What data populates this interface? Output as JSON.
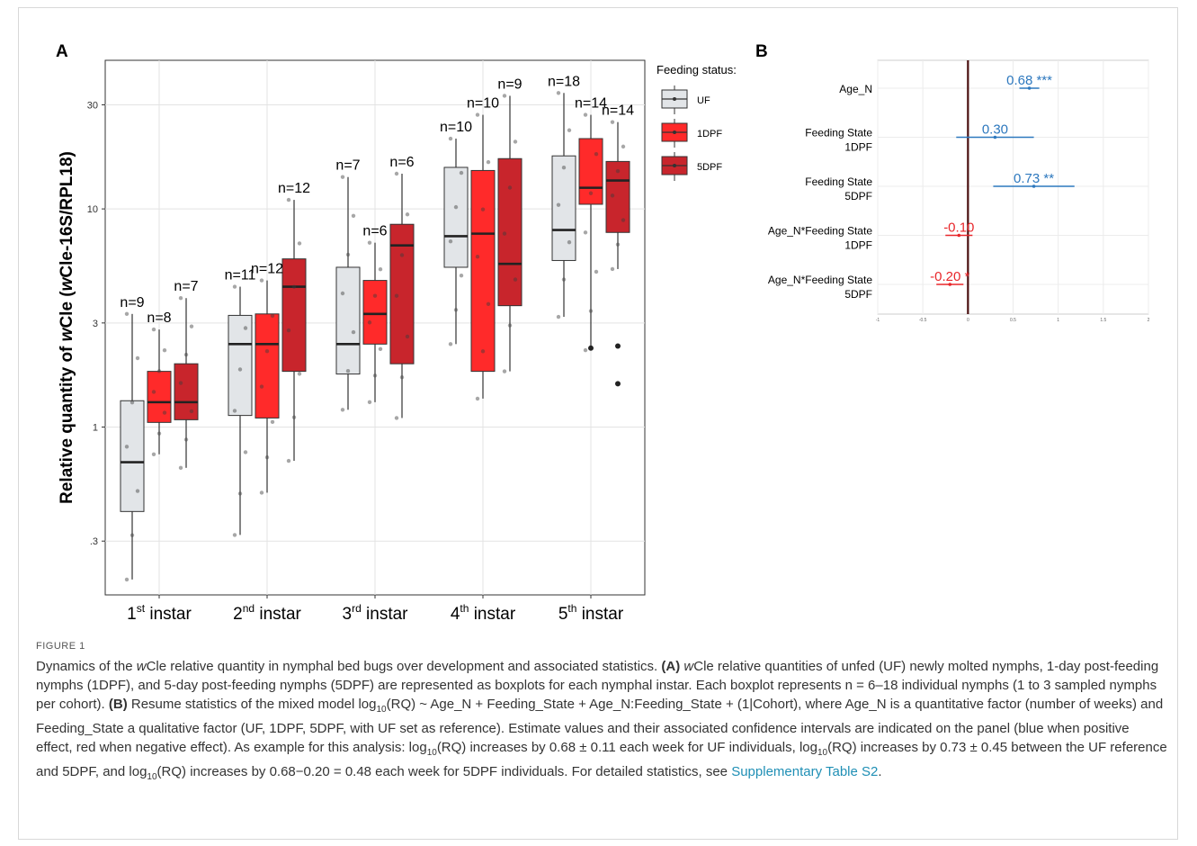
{
  "panel_labels": {
    "a": "A",
    "b": "B"
  },
  "panelA": {
    "ylabel_prefix": "Relative quantity of ",
    "ylabel_italic": "w",
    "ylabel_mid": "Cle (",
    "ylabel_italic2": "w",
    "ylabel_suffix": "Cle-16S/RPL18)",
    "legend_title": "Feeding status:",
    "colors": {
      "UF": "#e2e5e8",
      "1DPF": "#ff2a2a",
      "5DPF": "#c8252c"
    }
  },
  "panelB": {
    "colors": {
      "positive": "#2d78be",
      "negative": "#e8262a",
      "zero_line": "#4a0f0f"
    }
  },
  "chart_data": [
    {
      "type": "box",
      "panel": "A",
      "ylabel": "Relative quantity of wCle (wCle-16S/RPL18)",
      "yscale": "log",
      "ylim": [
        0.17,
        48
      ],
      "yticks": [
        0.3,
        1,
        3,
        10,
        30
      ],
      "ytick_labels": [
        ".3",
        "1",
        "3",
        "10",
        "30"
      ],
      "categories": [
        "1st instar",
        "2nd instar",
        "3rd instar",
        "4th instar",
        "5th instar"
      ],
      "category_parts": [
        {
          "num": "1",
          "sup": "st",
          "rest": " instar"
        },
        {
          "num": "2",
          "sup": "nd",
          "rest": " instar"
        },
        {
          "num": "3",
          "sup": "rd",
          "rest": " instar"
        },
        {
          "num": "4",
          "sup": "th",
          "rest": " instar"
        },
        {
          "num": "5",
          "sup": "th",
          "rest": " instar"
        }
      ],
      "legend": {
        "title": "Feeding status:",
        "placement": "right",
        "entries": [
          "UF",
          "1DPF",
          "5DPF"
        ]
      },
      "grid": true,
      "series": [
        {
          "name": "UF",
          "boxes": [
            {
              "category": 0,
              "n": "n=9",
              "min": 0.2,
              "q1": 0.41,
              "median": 0.69,
              "q3": 1.32,
              "max": 3.3
            },
            {
              "category": 1,
              "n": "n=11",
              "min": 0.32,
              "q1": 1.13,
              "median": 2.4,
              "q3": 3.25,
              "max": 4.4
            },
            {
              "category": 2,
              "n": "n=7",
              "min": 1.2,
              "q1": 1.75,
              "median": 2.4,
              "q3": 5.4,
              "max": 14.0
            },
            {
              "category": 3,
              "n": "n=10",
              "min": 2.4,
              "q1": 5.4,
              "median": 7.5,
              "q3": 15.5,
              "max": 21.0
            },
            {
              "category": 4,
              "n": "n=18",
              "min": 3.2,
              "q1": 5.8,
              "median": 8.0,
              "q3": 17.5,
              "max": 34.0
            }
          ]
        },
        {
          "name": "1DPF",
          "boxes": [
            {
              "category": 0,
              "n": "n=8",
              "min": 0.75,
              "q1": 1.05,
              "median": 1.3,
              "q3": 1.8,
              "max": 2.8
            },
            {
              "category": 1,
              "n": "n=12",
              "min": 0.5,
              "q1": 1.1,
              "median": 2.4,
              "q3": 3.3,
              "max": 4.7
            },
            {
              "category": 2,
              "n": "n=6",
              "min": 1.3,
              "q1": 2.4,
              "median": 3.3,
              "q3": 4.7,
              "max": 7.0
            },
            {
              "category": 3,
              "n": "n=10",
              "min": 1.35,
              "q1": 1.8,
              "median": 7.7,
              "q3": 15.0,
              "max": 27.0
            },
            {
              "category": 4,
              "n": "n=14",
              "min": 2.25,
              "q1": 10.5,
              "median": 12.5,
              "q3": 21.0,
              "max": 27.0
            }
          ]
        },
        {
          "name": "5DPF",
          "boxes": [
            {
              "category": 0,
              "n": "n=7",
              "min": 0.65,
              "q1": 1.08,
              "median": 1.3,
              "q3": 1.95,
              "max": 3.9
            },
            {
              "category": 1,
              "n": "n=12",
              "min": 0.7,
              "q1": 1.8,
              "median": 4.4,
              "q3": 5.9,
              "max": 11.0
            },
            {
              "category": 2,
              "n": "n=6",
              "min": 1.1,
              "q1": 1.95,
              "median": 6.8,
              "q3": 8.5,
              "max": 14.5
            },
            {
              "category": 3,
              "n": "n=9",
              "min": 1.8,
              "q1": 3.6,
              "median": 5.6,
              "q3": 17.0,
              "max": 33.0
            },
            {
              "category": 4,
              "n": "n=14",
              "min": 5.3,
              "q1": 7.8,
              "median": 13.5,
              "q3": 16.5,
              "max": 25.0,
              "outliers": [
                2.35,
                1.58
              ]
            }
          ]
        }
      ]
    },
    {
      "type": "forest",
      "panel": "B",
      "xlim": [
        -1,
        2
      ],
      "xticks": [
        -1,
        -0.5,
        0,
        0.5,
        1,
        1.5,
        2
      ],
      "xtick_labels": [
        "-1",
        "-0.5",
        "0",
        "0.5",
        "1",
        "1.5",
        "2"
      ],
      "grid": true,
      "rows": [
        {
          "label": [
            "Age_N"
          ],
          "estimate": 0.68,
          "low": 0.57,
          "high": 0.79,
          "text": "0.68 ***",
          "sign": "positive"
        },
        {
          "label": [
            "Feeding State",
            "1DPF"
          ],
          "estimate": 0.3,
          "low": -0.13,
          "high": 0.73,
          "text": "0.30",
          "sign": "positive"
        },
        {
          "label": [
            "Feeding State",
            "5DPF"
          ],
          "estimate": 0.73,
          "low": 0.28,
          "high": 1.18,
          "text": "0.73 **",
          "sign": "positive"
        },
        {
          "label": [
            "Age_N*Feeding State",
            "1DPF"
          ],
          "estimate": -0.1,
          "low": -0.25,
          "high": 0.05,
          "text": "-0.10",
          "sign": "negative"
        },
        {
          "label": [
            "Age_N*Feeding State",
            "5DPF"
          ],
          "estimate": -0.2,
          "low": -0.35,
          "high": -0.05,
          "text": "-0.20 *",
          "sign": "negative"
        }
      ]
    }
  ],
  "caption": {
    "label": "FIGURE 1",
    "text_1": "Dynamics of the ",
    "text_1_it": "w",
    "text_2": "Cle relative quantity in nymphal bed bugs over development and associated statistics. ",
    "a_bold": "(A) ",
    "text_3_it": "w",
    "text_4": "Cle relative quantities of unfed (UF) newly molted nymphs, 1-day post-feeding nymphs (1DPF), and 5-day post-feeding nymphs (5DPF) are represented as boxplots for each nymphal instar. Each boxplot represents n = 6–18 individual nymphs (1 to 3 sampled nymphs per cohort). ",
    "b_bold": "(B) ",
    "text_5": "Resume statistics of the mixed model log",
    "sub1": "10",
    "text_6": "(RQ) ~ Age_N + Feeding_State + Age_N:Feeding_State + (1|Cohort), where Age_N is a quantitative factor (number of weeks) and Feeding_State a qualitative factor (UF, 1DPF, 5DPF, with UF set as reference). Estimate values and their associated confidence intervals are indicated on the panel (blue when positive effect, red when negative effect). As example for this analysis: log",
    "sub2": "10",
    "text_7": "(RQ) increases by 0.68 ± 0.11 each week for UF individuals, log",
    "sub3": "10",
    "text_8": "(RQ) increases by 0.73 ± 0.45 between the UF reference and 5DPF, and log",
    "sub4": "10",
    "text_9": "(RQ) increases by 0.68−0.20 = 0.48 each week for 5DPF individuals. For detailed statistics, see ",
    "link": "Supplementary Table S2",
    "text_10": "."
  }
}
